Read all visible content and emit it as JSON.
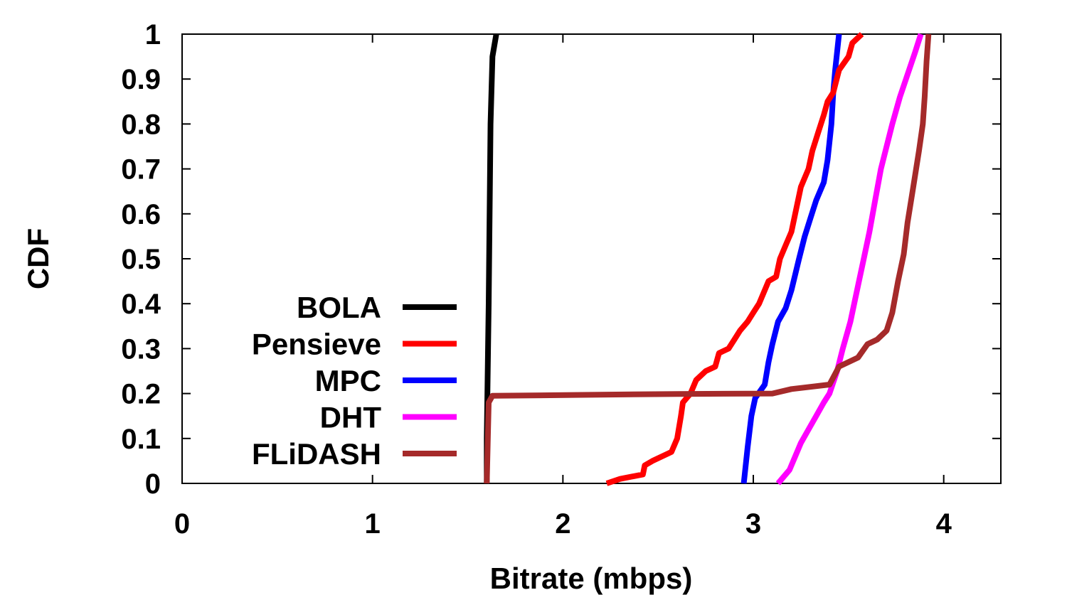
{
  "chart_data": {
    "type": "line",
    "title": "",
    "xlabel": "Bitrate (mbps)",
    "ylabel": "CDF",
    "xlim": [
      0,
      4.3
    ],
    "ylim": [
      0,
      1
    ],
    "xticks": [
      0,
      1,
      2,
      3,
      4
    ],
    "yticks": [
      0,
      0.1,
      0.2,
      0.3,
      0.4,
      0.5,
      0.6,
      0.7,
      0.8,
      0.9,
      1
    ],
    "xtick_labels": [
      "0",
      "1",
      "2",
      "3",
      "4"
    ],
    "ytick_labels": [
      "0",
      "0.1",
      "0.2",
      "0.3",
      "0.4",
      "0.5",
      "0.6",
      "0.7",
      "0.8",
      "0.9",
      "1"
    ],
    "grid": false,
    "legend_position": "bottom-left",
    "series": [
      {
        "name": "BOLA",
        "color": "#000000",
        "points": [
          [
            1.6,
            0.0
          ],
          [
            1.6,
            0.1
          ],
          [
            1.61,
            0.4
          ],
          [
            1.62,
            0.8
          ],
          [
            1.63,
            0.95
          ],
          [
            1.65,
            1.0
          ]
        ]
      },
      {
        "name": "Pensieve",
        "color": "#ff0000",
        "points": [
          [
            2.23,
            0.0
          ],
          [
            2.3,
            0.01
          ],
          [
            2.42,
            0.02
          ],
          [
            2.43,
            0.04
          ],
          [
            2.47,
            0.05
          ],
          [
            2.57,
            0.07
          ],
          [
            2.6,
            0.1
          ],
          [
            2.62,
            0.15
          ],
          [
            2.63,
            0.18
          ],
          [
            2.67,
            0.2
          ],
          [
            2.7,
            0.23
          ],
          [
            2.75,
            0.25
          ],
          [
            2.8,
            0.26
          ],
          [
            2.82,
            0.29
          ],
          [
            2.87,
            0.3
          ],
          [
            2.9,
            0.32
          ],
          [
            2.93,
            0.34
          ],
          [
            2.97,
            0.36
          ],
          [
            3.0,
            0.38
          ],
          [
            3.03,
            0.4
          ],
          [
            3.06,
            0.43
          ],
          [
            3.08,
            0.45
          ],
          [
            3.12,
            0.46
          ],
          [
            3.14,
            0.5
          ],
          [
            3.17,
            0.53
          ],
          [
            3.2,
            0.56
          ],
          [
            3.22,
            0.6
          ],
          [
            3.25,
            0.66
          ],
          [
            3.29,
            0.7
          ],
          [
            3.31,
            0.74
          ],
          [
            3.34,
            0.78
          ],
          [
            3.37,
            0.82
          ],
          [
            3.39,
            0.85
          ],
          [
            3.42,
            0.87
          ],
          [
            3.45,
            0.92
          ],
          [
            3.5,
            0.95
          ],
          [
            3.52,
            0.98
          ],
          [
            3.57,
            1.0
          ]
        ]
      },
      {
        "name": "MPC",
        "color": "#0000ff",
        "points": [
          [
            2.95,
            0.0
          ],
          [
            2.97,
            0.08
          ],
          [
            2.99,
            0.15
          ],
          [
            3.01,
            0.19
          ],
          [
            3.06,
            0.22
          ],
          [
            3.08,
            0.27
          ],
          [
            3.1,
            0.31
          ],
          [
            3.13,
            0.36
          ],
          [
            3.17,
            0.39
          ],
          [
            3.2,
            0.43
          ],
          [
            3.24,
            0.5
          ],
          [
            3.27,
            0.55
          ],
          [
            3.3,
            0.59
          ],
          [
            3.33,
            0.63
          ],
          [
            3.37,
            0.67
          ],
          [
            3.39,
            0.72
          ],
          [
            3.41,
            0.8
          ],
          [
            3.42,
            0.87
          ],
          [
            3.43,
            0.92
          ],
          [
            3.44,
            0.96
          ],
          [
            3.45,
            1.0
          ]
        ]
      },
      {
        "name": "DHT",
        "color": "#ff00ff",
        "points": [
          [
            3.13,
            0.0
          ],
          [
            3.19,
            0.03
          ],
          [
            3.22,
            0.06
          ],
          [
            3.25,
            0.09
          ],
          [
            3.29,
            0.12
          ],
          [
            3.33,
            0.15
          ],
          [
            3.37,
            0.18
          ],
          [
            3.4,
            0.2
          ],
          [
            3.44,
            0.25
          ],
          [
            3.47,
            0.3
          ],
          [
            3.51,
            0.36
          ],
          [
            3.55,
            0.44
          ],
          [
            3.58,
            0.5
          ],
          [
            3.61,
            0.56
          ],
          [
            3.64,
            0.63
          ],
          [
            3.67,
            0.7
          ],
          [
            3.7,
            0.75
          ],
          [
            3.73,
            0.8
          ],
          [
            3.77,
            0.86
          ],
          [
            3.81,
            0.91
          ],
          [
            3.85,
            0.96
          ],
          [
            3.88,
            1.0
          ]
        ]
      },
      {
        "name": "FLiDASH",
        "color": "#a52a2a",
        "points": [
          [
            1.6,
            0.0
          ],
          [
            1.61,
            0.18
          ],
          [
            1.63,
            0.195
          ],
          [
            2.1,
            0.197
          ],
          [
            2.6,
            0.199
          ],
          [
            3.1,
            0.2
          ],
          [
            3.2,
            0.21
          ],
          [
            3.4,
            0.22
          ],
          [
            3.45,
            0.26
          ],
          [
            3.55,
            0.28
          ],
          [
            3.6,
            0.31
          ],
          [
            3.65,
            0.32
          ],
          [
            3.7,
            0.34
          ],
          [
            3.73,
            0.38
          ],
          [
            3.76,
            0.45
          ],
          [
            3.79,
            0.51
          ],
          [
            3.81,
            0.58
          ],
          [
            3.84,
            0.66
          ],
          [
            3.87,
            0.74
          ],
          [
            3.89,
            0.8
          ],
          [
            3.9,
            0.86
          ],
          [
            3.91,
            0.94
          ],
          [
            3.92,
            1.0
          ]
        ]
      }
    ]
  }
}
